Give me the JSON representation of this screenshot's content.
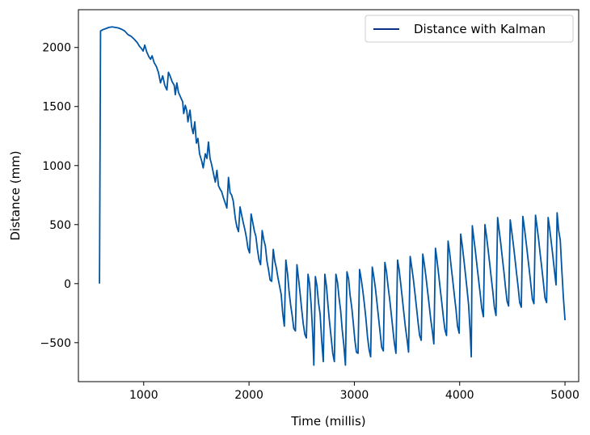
{
  "chart_data": {
    "type": "line",
    "title": "",
    "xlabel": "Time (millis)",
    "ylabel": "Distance (mm)",
    "xlim": [
      380,
      5130
    ],
    "ylim": [
      -830,
      2320
    ],
    "xticks": [
      1000,
      2000,
      3000,
      4000,
      5000
    ],
    "xtick_labels": [
      "1000",
      "2000",
      "3000",
      "4000",
      "5000"
    ],
    "yticks": [
      -500,
      0,
      500,
      1000,
      1500,
      2000
    ],
    "ytick_labels": [
      "−500",
      "0",
      "500",
      "1000",
      "1500",
      "2000"
    ],
    "grid": false,
    "legend_position": "top-right",
    "series": [
      {
        "name": "Distance with Kalman",
        "color": "#0055a4",
        "points": [
          [
            580,
            0
          ],
          [
            590,
            2140
          ],
          [
            610,
            2150
          ],
          [
            640,
            2160
          ],
          [
            670,
            2170
          ],
          [
            700,
            2175
          ],
          [
            730,
            2170
          ],
          [
            760,
            2165
          ],
          [
            790,
            2155
          ],
          [
            820,
            2140
          ],
          [
            850,
            2110
          ],
          [
            880,
            2095
          ],
          [
            910,
            2070
          ],
          [
            940,
            2040
          ],
          [
            960,
            2010
          ],
          [
            980,
            1990
          ],
          [
            995,
            1970
          ],
          [
            1010,
            2020
          ],
          [
            1030,
            1960
          ],
          [
            1050,
            1920
          ],
          [
            1065,
            1900
          ],
          [
            1080,
            1930
          ],
          [
            1100,
            1870
          ],
          [
            1120,
            1840
          ],
          [
            1140,
            1790
          ],
          [
            1160,
            1700
          ],
          [
            1180,
            1760
          ],
          [
            1200,
            1680
          ],
          [
            1220,
            1640
          ],
          [
            1235,
            1790
          ],
          [
            1250,
            1760
          ],
          [
            1270,
            1710
          ],
          [
            1290,
            1680
          ],
          [
            1300,
            1600
          ],
          [
            1315,
            1700
          ],
          [
            1330,
            1620
          ],
          [
            1350,
            1580
          ],
          [
            1370,
            1540
          ],
          [
            1380,
            1440
          ],
          [
            1395,
            1510
          ],
          [
            1410,
            1460
          ],
          [
            1420,
            1370
          ],
          [
            1440,
            1470
          ],
          [
            1455,
            1330
          ],
          [
            1470,
            1270
          ],
          [
            1485,
            1370
          ],
          [
            1500,
            1190
          ],
          [
            1515,
            1230
          ],
          [
            1530,
            1100
          ],
          [
            1550,
            1040
          ],
          [
            1565,
            980
          ],
          [
            1585,
            1100
          ],
          [
            1600,
            1060
          ],
          [
            1615,
            1200
          ],
          [
            1630,
            1060
          ],
          [
            1645,
            1010
          ],
          [
            1665,
            920
          ],
          [
            1680,
            860
          ],
          [
            1695,
            960
          ],
          [
            1710,
            830
          ],
          [
            1725,
            800
          ],
          [
            1740,
            780
          ],
          [
            1760,
            720
          ],
          [
            1775,
            680
          ],
          [
            1790,
            640
          ],
          [
            1805,
            900
          ],
          [
            1820,
            770
          ],
          [
            1835,
            750
          ],
          [
            1850,
            700
          ],
          [
            1870,
            550
          ],
          [
            1885,
            480
          ],
          [
            1900,
            440
          ],
          [
            1915,
            650
          ],
          [
            1930,
            580
          ],
          [
            1945,
            520
          ],
          [
            1960,
            460
          ],
          [
            1975,
            390
          ],
          [
            1990,
            300
          ],
          [
            2005,
            260
          ],
          [
            2020,
            590
          ],
          [
            2035,
            520
          ],
          [
            2050,
            450
          ],
          [
            2065,
            400
          ],
          [
            2080,
            290
          ],
          [
            2095,
            200
          ],
          [
            2110,
            160
          ],
          [
            2125,
            450
          ],
          [
            2140,
            370
          ],
          [
            2155,
            320
          ],
          [
            2170,
            190
          ],
          [
            2185,
            120
          ],
          [
            2200,
            30
          ],
          [
            2215,
            20
          ],
          [
            2230,
            290
          ],
          [
            2245,
            190
          ],
          [
            2260,
            130
          ],
          [
            2275,
            50
          ],
          [
            2290,
            -20
          ],
          [
            2305,
            -90
          ],
          [
            2320,
            -250
          ],
          [
            2335,
            -360
          ],
          [
            2350,
            200
          ],
          [
            2365,
            90
          ],
          [
            2380,
            -60
          ],
          [
            2395,
            -180
          ],
          [
            2410,
            -270
          ],
          [
            2425,
            -380
          ],
          [
            2440,
            -400
          ],
          [
            2455,
            160
          ],
          [
            2470,
            40
          ],
          [
            2485,
            -80
          ],
          [
            2500,
            -220
          ],
          [
            2515,
            -340
          ],
          [
            2530,
            -430
          ],
          [
            2545,
            -460
          ],
          [
            2560,
            80
          ],
          [
            2575,
            0
          ],
          [
            2590,
            -180
          ],
          [
            2605,
            -440
          ],
          [
            2615,
            -690
          ],
          [
            2630,
            60
          ],
          [
            2645,
            -20
          ],
          [
            2660,
            -160
          ],
          [
            2675,
            -260
          ],
          [
            2690,
            -480
          ],
          [
            2705,
            -660
          ],
          [
            2720,
            80
          ],
          [
            2735,
            -20
          ],
          [
            2750,
            -180
          ],
          [
            2765,
            -330
          ],
          [
            2780,
            -460
          ],
          [
            2795,
            -590
          ],
          [
            2810,
            -660
          ],
          [
            2825,
            80
          ],
          [
            2840,
            10
          ],
          [
            2855,
            -120
          ],
          [
            2870,
            -230
          ],
          [
            2885,
            -390
          ],
          [
            2900,
            -520
          ],
          [
            2915,
            -690
          ],
          [
            2930,
            100
          ],
          [
            2945,
            40
          ],
          [
            2960,
            -100
          ],
          [
            2975,
            -200
          ],
          [
            2990,
            -330
          ],
          [
            3005,
            -480
          ],
          [
            3020,
            -580
          ],
          [
            3035,
            -590
          ],
          [
            3050,
            120
          ],
          [
            3065,
            40
          ],
          [
            3080,
            -60
          ],
          [
            3095,
            -170
          ],
          [
            3110,
            -300
          ],
          [
            3125,
            -450
          ],
          [
            3140,
            -560
          ],
          [
            3155,
            -620
          ],
          [
            3170,
            140
          ],
          [
            3185,
            60
          ],
          [
            3200,
            -40
          ],
          [
            3215,
            -160
          ],
          [
            3230,
            -290
          ],
          [
            3245,
            -420
          ],
          [
            3260,
            -540
          ],
          [
            3275,
            -570
          ],
          [
            3290,
            180
          ],
          [
            3305,
            100
          ],
          [
            3320,
            -20
          ],
          [
            3335,
            -130
          ],
          [
            3350,
            -250
          ],
          [
            3365,
            -380
          ],
          [
            3380,
            -500
          ],
          [
            3395,
            -590
          ],
          [
            3410,
            200
          ],
          [
            3425,
            120
          ],
          [
            3440,
            0
          ],
          [
            3455,
            -120
          ],
          [
            3470,
            -250
          ],
          [
            3485,
            -370
          ],
          [
            3500,
            -470
          ],
          [
            3515,
            -580
          ],
          [
            3530,
            230
          ],
          [
            3545,
            140
          ],
          [
            3560,
            40
          ],
          [
            3575,
            -80
          ],
          [
            3590,
            -200
          ],
          [
            3605,
            -330
          ],
          [
            3620,
            -440
          ],
          [
            3635,
            -480
          ],
          [
            3650,
            250
          ],
          [
            3665,
            160
          ],
          [
            3680,
            60
          ],
          [
            3695,
            -60
          ],
          [
            3710,
            -180
          ],
          [
            3725,
            -300
          ],
          [
            3740,
            -400
          ],
          [
            3755,
            -510
          ],
          [
            3770,
            300
          ],
          [
            3785,
            200
          ],
          [
            3800,
            80
          ],
          [
            3815,
            -40
          ],
          [
            3830,
            -160
          ],
          [
            3845,
            -280
          ],
          [
            3860,
            -390
          ],
          [
            3875,
            -440
          ],
          [
            3890,
            360
          ],
          [
            3905,
            260
          ],
          [
            3920,
            140
          ],
          [
            3935,
            20
          ],
          [
            3950,
            -100
          ],
          [
            3965,
            -220
          ],
          [
            3980,
            -360
          ],
          [
            3995,
            -420
          ],
          [
            4010,
            420
          ],
          [
            4025,
            320
          ],
          [
            4040,
            200
          ],
          [
            4055,
            80
          ],
          [
            4070,
            -50
          ],
          [
            4085,
            -180
          ],
          [
            4100,
            -420
          ],
          [
            4110,
            -620
          ],
          [
            4120,
            490
          ],
          [
            4135,
            380
          ],
          [
            4150,
            270
          ],
          [
            4165,
            150
          ],
          [
            4180,
            30
          ],
          [
            4195,
            -90
          ],
          [
            4210,
            -210
          ],
          [
            4225,
            -280
          ],
          [
            4240,
            500
          ],
          [
            4255,
            400
          ],
          [
            4270,
            290
          ],
          [
            4285,
            170
          ],
          [
            4300,
            50
          ],
          [
            4315,
            -70
          ],
          [
            4330,
            -200
          ],
          [
            4345,
            -270
          ],
          [
            4360,
            560
          ],
          [
            4375,
            450
          ],
          [
            4390,
            340
          ],
          [
            4405,
            220
          ],
          [
            4420,
            100
          ],
          [
            4435,
            -30
          ],
          [
            4450,
            -150
          ],
          [
            4465,
            -190
          ],
          [
            4480,
            540
          ],
          [
            4495,
            440
          ],
          [
            4510,
            330
          ],
          [
            4525,
            210
          ],
          [
            4540,
            90
          ],
          [
            4555,
            -30
          ],
          [
            4570,
            -160
          ],
          [
            4585,
            -200
          ],
          [
            4600,
            570
          ],
          [
            4615,
            470
          ],
          [
            4630,
            360
          ],
          [
            4645,
            240
          ],
          [
            4660,
            120
          ],
          [
            4675,
            0
          ],
          [
            4690,
            -130
          ],
          [
            4705,
            -170
          ],
          [
            4720,
            580
          ],
          [
            4735,
            480
          ],
          [
            4750,
            370
          ],
          [
            4765,
            250
          ],
          [
            4780,
            130
          ],
          [
            4795,
            10
          ],
          [
            4810,
            -120
          ],
          [
            4825,
            -160
          ],
          [
            4840,
            560
          ],
          [
            4855,
            460
          ],
          [
            4870,
            350
          ],
          [
            4885,
            230
          ],
          [
            4900,
            110
          ],
          [
            4915,
            -10
          ],
          [
            4925,
            600
          ],
          [
            4940,
            450
          ],
          [
            4955,
            370
          ],
          [
            4970,
            120
          ],
          [
            4985,
            -120
          ],
          [
            5000,
            -310
          ]
        ]
      }
    ]
  }
}
